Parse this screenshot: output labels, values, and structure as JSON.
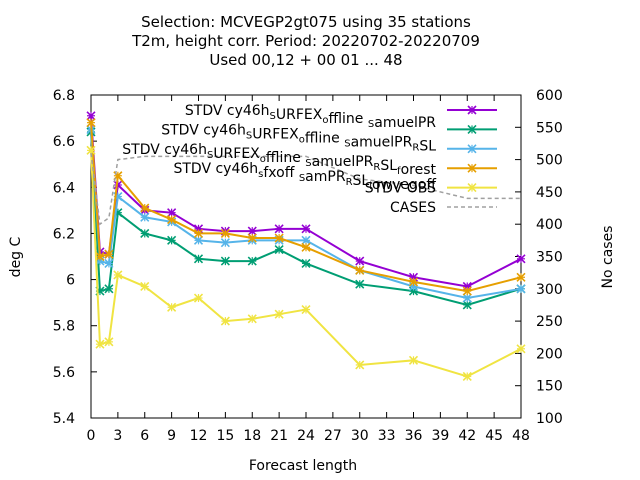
{
  "chart_data": {
    "type": "line",
    "title_lines": [
      "Selection: MCVEGP2gt075 using    35 stations",
      "T2m, height corr.   Period: 20220702-20220709",
      "Used  00,12  + 00 01 ... 48"
    ],
    "xlabel": "Forecast length",
    "ylabel": "deg C",
    "y2label": "No cases",
    "xlim": [
      0,
      48
    ],
    "ylim": [
      5.4,
      6.8
    ],
    "y2lim": [
      100,
      600
    ],
    "x_ticks": [
      "0",
      "3",
      "6",
      "9",
      "12",
      "15",
      "18",
      "21",
      "24",
      "27",
      "30",
      "33",
      "36",
      "39",
      "42",
      "45",
      "48"
    ],
    "y_ticks": [
      "5.4",
      "5.6",
      "5.8",
      "6",
      "6.2",
      "6.4",
      "6.6",
      "6.8"
    ],
    "y2_ticks": [
      "100",
      "150",
      "200",
      "250",
      "300",
      "350",
      "400",
      "450",
      "500",
      "550",
      "600"
    ],
    "legend_position": "top-right",
    "series": [
      {
        "name": "STDV cy46h_SURFEX_offline_SamuelPR",
        "legend_parts": [
          [
            "STDV cy46h",
            ""
          ],
          [
            "S",
            "sub"
          ],
          [
            "URFEX",
            ""
          ],
          [
            "o",
            "sub"
          ],
          [
            "ffline ",
            ""
          ],
          [
            "S",
            "sub"
          ],
          [
            "amuelPR",
            ""
          ]
        ],
        "color": "#9400d3",
        "marker": "x",
        "x": [
          0,
          1,
          2,
          3,
          6,
          9,
          12,
          15,
          18,
          21,
          24,
          30,
          36,
          42,
          48
        ],
        "values": [
          6.71,
          6.12,
          6.11,
          6.41,
          6.3,
          6.29,
          6.22,
          6.21,
          6.21,
          6.22,
          6.22,
          6.08,
          6.01,
          5.97,
          6.09
        ]
      },
      {
        "name": "STDV cy46h_SURFEX_offline_SamuelPR_RSL",
        "legend_parts": [
          [
            "STDV cy46h",
            ""
          ],
          [
            "S",
            "sub"
          ],
          [
            "URFEX",
            ""
          ],
          [
            "o",
            "sub"
          ],
          [
            "ffline ",
            ""
          ],
          [
            "S",
            "sub"
          ],
          [
            "amuelPR",
            ""
          ],
          [
            "R",
            "sub"
          ],
          [
            "SL",
            ""
          ]
        ],
        "color": "#009e73",
        "marker": "x",
        "x": [
          0,
          1,
          2,
          3,
          6,
          9,
          12,
          15,
          18,
          21,
          24,
          30,
          36,
          42,
          48
        ],
        "values": [
          6.64,
          5.95,
          5.96,
          6.29,
          6.2,
          6.17,
          6.09,
          6.08,
          6.08,
          6.13,
          6.07,
          5.98,
          5.95,
          5.89,
          5.96
        ]
      },
      {
        "name": "STDV cy46h_SURFEX_offline_SamuelPR_RSL_forest",
        "legend_parts": [
          [
            "STDV cy46h",
            ""
          ],
          [
            "S",
            "sub"
          ],
          [
            "URFEX",
            ""
          ],
          [
            "o",
            "sub"
          ],
          [
            "ffline ",
            ""
          ],
          [
            "S",
            "sub"
          ],
          [
            "amuelPR",
            ""
          ],
          [
            "R",
            "sub"
          ],
          [
            "SL",
            ""
          ],
          [
            "f",
            "sub"
          ],
          [
            "orest",
            ""
          ]
        ],
        "color": "#56b4e9",
        "marker": "x",
        "x": [
          0,
          1,
          2,
          3,
          6,
          9,
          12,
          15,
          18,
          21,
          24,
          30,
          36,
          42,
          48
        ],
        "values": [
          6.65,
          6.08,
          6.07,
          6.36,
          6.27,
          6.25,
          6.17,
          6.16,
          6.17,
          6.17,
          6.17,
          6.04,
          5.97,
          5.92,
          5.96
        ]
      },
      {
        "name": "STDV cy46h_sfxoff_SamPR_RSL_lowvegoff",
        "legend_parts": [
          [
            "STDV cy46h",
            ""
          ],
          [
            "s",
            "sub"
          ],
          [
            "fxoff ",
            ""
          ],
          [
            "S",
            "sub"
          ],
          [
            "amPR",
            ""
          ],
          [
            "R",
            "sub"
          ],
          [
            "SL",
            ""
          ],
          [
            "l",
            "sub"
          ],
          [
            "owvegoff",
            ""
          ]
        ],
        "color": "#e69f00",
        "marker": "x",
        "x": [
          0,
          1,
          2,
          3,
          6,
          9,
          12,
          15,
          18,
          21,
          24,
          30,
          36,
          42,
          48
        ],
        "values": [
          6.68,
          6.1,
          6.11,
          6.45,
          6.31,
          6.26,
          6.2,
          6.2,
          6.18,
          6.18,
          6.14,
          6.04,
          5.99,
          5.95,
          6.01
        ]
      },
      {
        "name": "STDV OBS",
        "legend_parts": [
          [
            "STDV OBS",
            ""
          ]
        ],
        "color": "#f0e442",
        "marker": "x",
        "x": [
          0,
          1,
          2,
          3,
          6,
          9,
          12,
          15,
          18,
          21,
          24,
          30,
          36,
          42,
          48
        ],
        "values": [
          6.56,
          5.72,
          5.73,
          6.02,
          5.97,
          5.88,
          5.92,
          5.82,
          5.83,
          5.85,
          5.87,
          5.63,
          5.65,
          5.58,
          5.7
        ]
      },
      {
        "name": "CASES",
        "legend_parts": [
          [
            "CASES",
            ""
          ]
        ],
        "color": "#a0a0a0",
        "marker": "none",
        "dashed": true,
        "axis": "y2",
        "x": [
          0,
          1,
          2,
          3,
          6,
          9,
          12,
          15,
          18,
          21,
          24,
          30,
          36,
          42,
          48
        ],
        "values": [
          510,
          400,
          410,
          500,
          505,
          505,
          505,
          505,
          505,
          505,
          505,
          470,
          460,
          440,
          440
        ]
      }
    ]
  }
}
